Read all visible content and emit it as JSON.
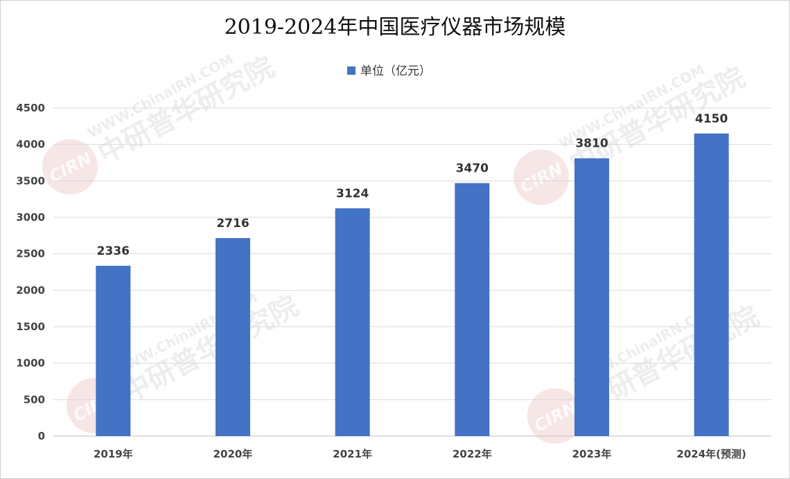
{
  "chart_data": {
    "type": "bar",
    "title": "2019-2024年中国医疗仪器市场规模",
    "legend": {
      "position": "top-center",
      "entries": [
        {
          "name": "单位（亿元）",
          "color": "#4472C4"
        }
      ]
    },
    "categories": [
      "2019年",
      "2020年",
      "2021年",
      "2022年",
      "2023年",
      "2024年(预测)"
    ],
    "series": [
      {
        "name": "单位（亿元）",
        "values": [
          2336,
          2716,
          3124,
          3470,
          3810,
          4150
        ],
        "color": "#4472C4"
      }
    ],
    "xlabel": "",
    "ylabel": "",
    "ylim": [
      0,
      4500
    ],
    "yticks": [
      0,
      500,
      1000,
      1500,
      2000,
      2500,
      3000,
      3500,
      4000,
      4500
    ],
    "grid": true,
    "data_labels": true
  },
  "watermark": {
    "url_text": "WWW.ChinaIRN.COM",
    "brand_text": "中研普华研究院",
    "logo_text": "CIRN"
  }
}
